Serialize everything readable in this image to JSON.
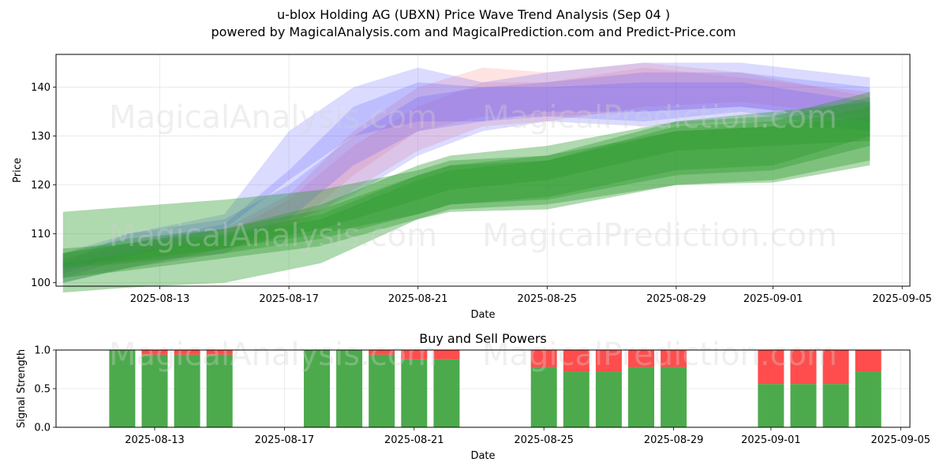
{
  "title": "u-blox Holding AG (UBXN) Price Wave Trend Analysis (Sep 04 )",
  "subtitle": "powered by MagicalAnalysis.com and MagicalPrediction.com and Predict-Price.com",
  "watermarks": [
    "MagicalAnalysis.com",
    "MagicalPrediction.com"
  ],
  "colors": {
    "green": "#2e9b2e",
    "red": "#ff3c3c",
    "blue": "#4b4bff",
    "pink": "#ff8080",
    "bar_green": "#4caa4c",
    "bar_red": "#ff4d4d"
  },
  "chart_data": [
    {
      "type": "area",
      "title": "",
      "xlabel": "Date",
      "ylabel": "Price",
      "x_ticks": [
        "2025-08-13",
        "2025-08-17",
        "2025-08-21",
        "2025-08-25",
        "2025-08-29",
        "2025-09-01",
        "2025-09-05"
      ],
      "y_ticks": [
        100,
        110,
        120,
        130,
        140
      ],
      "xlim": [
        "2025-08-09",
        "2025-09-05"
      ],
      "ylim": [
        99.3,
        146.7
      ],
      "grid": true,
      "series": [
        {
          "color": "green",
          "x": [
            "2025-08-10",
            "2025-08-12",
            "2025-08-15",
            "2025-08-18",
            "2025-08-21",
            "2025-08-22",
            "2025-08-25",
            "2025-08-29",
            "2025-09-01",
            "2025-09-04"
          ],
          "low": [
            103.5,
            104.5,
            107,
            110,
            114,
            116,
            117,
            122,
            123,
            128
          ],
          "high": [
            114.5,
            115.5,
            117,
            119,
            123,
            125,
            126,
            131,
            132,
            134
          ]
        },
        {
          "color": "green",
          "x": [
            "2025-08-10",
            "2025-08-12",
            "2025-08-15",
            "2025-08-18",
            "2025-08-21",
            "2025-08-22",
            "2025-08-25",
            "2025-08-29",
            "2025-09-01",
            "2025-09-04"
          ],
          "low": [
            101,
            102.5,
            105,
            107.5,
            113,
            115,
            116,
            120,
            121,
            125
          ],
          "high": [
            104,
            106,
            109.5,
            113,
            121,
            123,
            125,
            131,
            132,
            136
          ]
        },
        {
          "color": "green",
          "x": [
            "2025-08-10",
            "2025-08-12",
            "2025-08-15",
            "2025-08-18",
            "2025-08-21",
            "2025-08-22",
            "2025-08-25",
            "2025-08-29",
            "2025-09-01",
            "2025-09-04"
          ],
          "low": [
            98,
            99,
            100,
            104,
            113,
            114.5,
            115,
            120,
            120.5,
            124
          ],
          "high": [
            107,
            108,
            110,
            114,
            122,
            124,
            125,
            132,
            133,
            138
          ]
        },
        {
          "color": "green",
          "x": [
            "2025-08-10",
            "2025-08-12",
            "2025-08-15",
            "2025-08-18",
            "2025-08-21",
            "2025-08-22",
            "2025-08-25",
            "2025-08-29",
            "2025-09-01",
            "2025-09-04"
          ],
          "low": [
            103,
            104,
            106,
            109,
            114,
            116,
            117.5,
            123,
            124,
            130
          ],
          "high": [
            106,
            109,
            111,
            115,
            122,
            124,
            126,
            133,
            134,
            139
          ]
        },
        {
          "color": "green",
          "x": [
            "2025-08-10",
            "2025-08-12",
            "2025-08-15",
            "2025-08-18",
            "2025-08-21",
            "2025-08-22",
            "2025-08-25",
            "2025-08-29",
            "2025-09-01",
            "2025-09-04"
          ],
          "low": [
            100,
            103,
            107,
            111,
            117,
            119,
            121,
            127,
            128,
            129
          ],
          "high": [
            106,
            108,
            111,
            116,
            124,
            126,
            128,
            133,
            135,
            137
          ]
        },
        {
          "color": "blue",
          "x": [
            "2025-08-10",
            "2025-08-12",
            "2025-08-15",
            "2025-08-17",
            "2025-08-19",
            "2025-08-21",
            "2025-08-23",
            "2025-08-25",
            "2025-08-28",
            "2025-08-31",
            "2025-09-04"
          ],
          "low": [
            101,
            105,
            111,
            121,
            130,
            133,
            133,
            134,
            133,
            135,
            131
          ],
          "high": [
            104,
            110,
            114,
            131,
            140,
            144,
            141,
            143,
            145,
            145,
            142
          ]
        },
        {
          "color": "blue",
          "x": [
            "2025-08-10",
            "2025-08-12",
            "2025-08-15",
            "2025-08-17",
            "2025-08-19",
            "2025-08-21",
            "2025-08-23",
            "2025-08-25",
            "2025-08-28",
            "2025-08-31",
            "2025-09-04"
          ],
          "low": [
            100,
            103,
            106,
            113,
            124,
            131,
            133,
            135,
            135,
            136,
            133
          ],
          "high": [
            105,
            108,
            112,
            123,
            136,
            141,
            140,
            141,
            143,
            143,
            140
          ]
        },
        {
          "color": "blue",
          "x": [
            "2025-08-10",
            "2025-08-12",
            "2025-08-15",
            "2025-08-17",
            "2025-08-19",
            "2025-08-21",
            "2025-08-23",
            "2025-08-25",
            "2025-08-28",
            "2025-08-31",
            "2025-09-04"
          ],
          "low": [
            102,
            106,
            108,
            112,
            118,
            126,
            131,
            133,
            132,
            133,
            131
          ],
          "high": [
            106,
            110,
            113,
            120,
            130,
            138,
            140,
            140,
            141,
            141,
            137
          ]
        },
        {
          "color": "pink",
          "x": [
            "2025-08-10",
            "2025-08-12",
            "2025-08-15",
            "2025-08-17",
            "2025-08-19",
            "2025-08-21",
            "2025-08-23",
            "2025-08-25",
            "2025-08-28",
            "2025-08-31",
            "2025-09-04"
          ],
          "low": [
            102,
            104,
            107,
            111,
            122,
            131,
            134,
            134,
            135,
            136,
            133
          ],
          "high": [
            106,
            108,
            111,
            118,
            131,
            140,
            144,
            143,
            145,
            143,
            138
          ]
        },
        {
          "color": "pink",
          "x": [
            "2025-08-10",
            "2025-08-12",
            "2025-08-15",
            "2025-08-17",
            "2025-08-19",
            "2025-08-21",
            "2025-08-23",
            "2025-08-25",
            "2025-08-28",
            "2025-08-31",
            "2025-09-04"
          ],
          "low": [
            101,
            103,
            106,
            110,
            119,
            127,
            132,
            133,
            136,
            137,
            134
          ],
          "high": [
            105,
            107,
            110,
            117,
            128,
            136,
            141,
            141,
            144,
            142,
            139
          ]
        }
      ]
    },
    {
      "type": "bar",
      "title": "Buy and Sell Powers",
      "xlabel": "Date",
      "ylabel": "Signal Strength",
      "x_ticks": [
        "2025-08-13",
        "2025-08-17",
        "2025-08-21",
        "2025-08-25",
        "2025-08-29",
        "2025-09-01",
        "2025-09-05"
      ],
      "y_ticks": [
        0.0,
        0.5,
        1.0
      ],
      "ylim": [
        0,
        1
      ],
      "grid": true,
      "categories": [
        "2025-08-12",
        "2025-08-13",
        "2025-08-14",
        "2025-08-15",
        "2025-08-18",
        "2025-08-19",
        "2025-08-20",
        "2025-08-21",
        "2025-08-22",
        "2025-08-25",
        "2025-08-26",
        "2025-08-27",
        "2025-08-28",
        "2025-08-29",
        "2025-09-01",
        "2025-09-02",
        "2025-09-03",
        "2025-09-04"
      ],
      "series": [
        {
          "name": "buy",
          "values": [
            1.0,
            0.94,
            0.94,
            0.94,
            1.0,
            1.0,
            0.94,
            0.88,
            0.88,
            0.78,
            0.72,
            0.72,
            0.78,
            0.78,
            0.56,
            0.56,
            0.56,
            0.72
          ]
        },
        {
          "name": "sell",
          "values": [
            0.0,
            0.06,
            0.06,
            0.06,
            0.0,
            0.0,
            0.06,
            0.12,
            0.12,
            0.22,
            0.28,
            0.28,
            0.22,
            0.22,
            0.44,
            0.44,
            0.44,
            0.28
          ]
        }
      ]
    }
  ]
}
